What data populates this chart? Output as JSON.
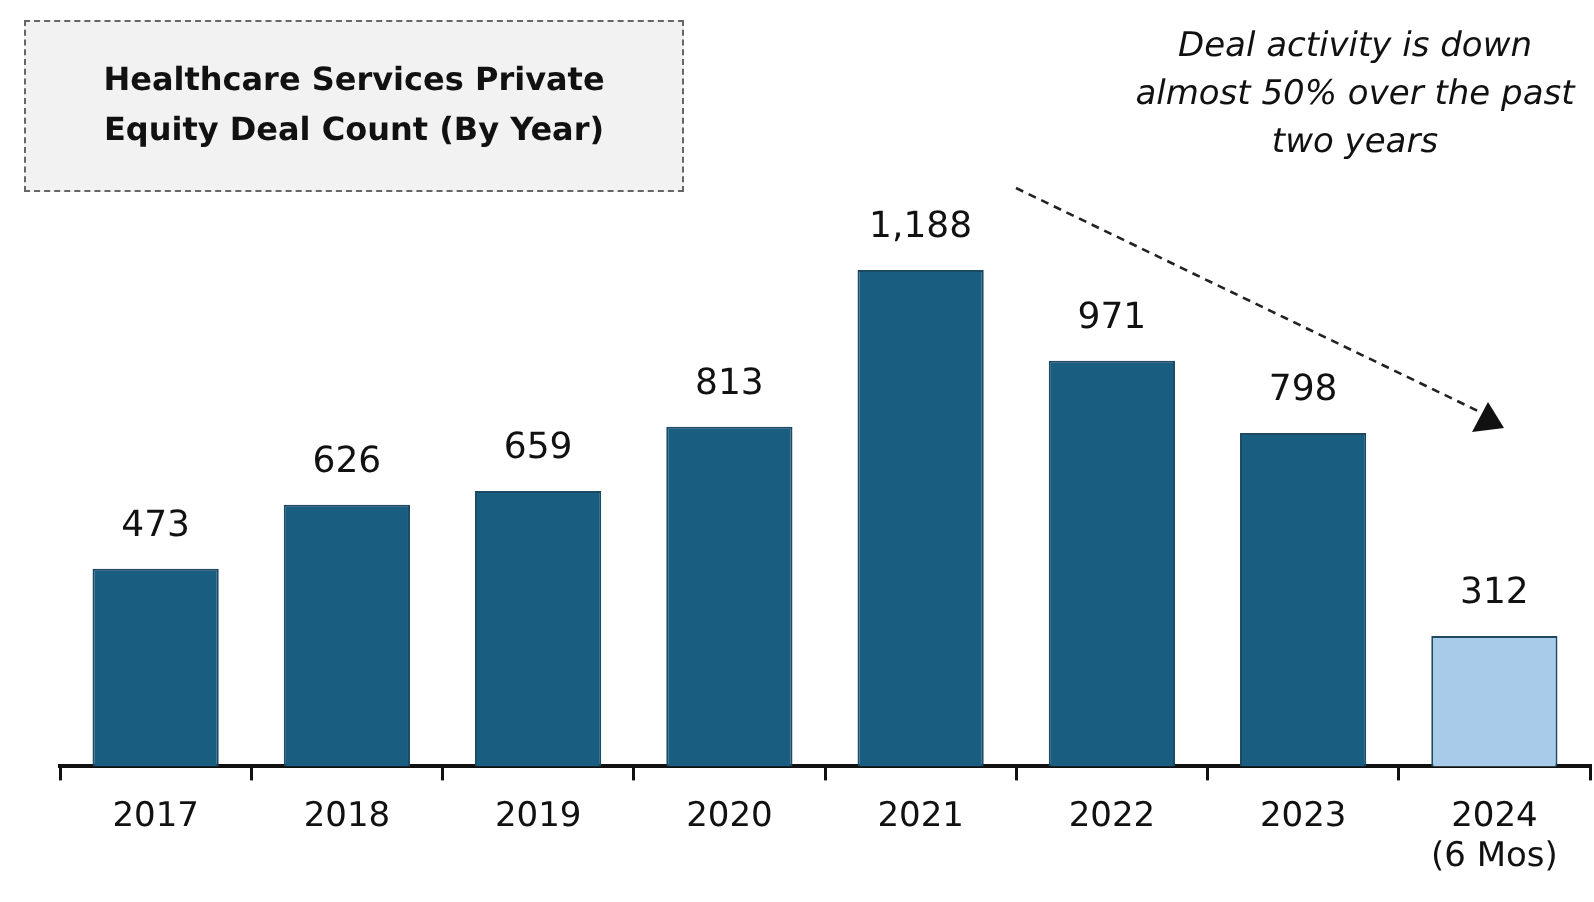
{
  "chart_data": {
    "type": "bar",
    "title": "Healthcare Services Private Equity Deal Count (By Year)",
    "categories": [
      "2017",
      "2018",
      "2019",
      "2020",
      "2021",
      "2022",
      "2023",
      "2024\n(6 Mos)"
    ],
    "values": [
      473,
      626,
      659,
      813,
      1188,
      971,
      798,
      312
    ],
    "colors": [
      "#195e80",
      "#195e80",
      "#195e80",
      "#195e80",
      "#195e80",
      "#195e80",
      "#195e80",
      "#a8cbea"
    ],
    "value_labels": [
      "473",
      "626",
      "659",
      "813",
      "1,188",
      "971",
      "798",
      "312"
    ],
    "annotations": [
      "Deal activity is down almost 50% over the past two years"
    ],
    "legend": false,
    "grid": false
  }
}
